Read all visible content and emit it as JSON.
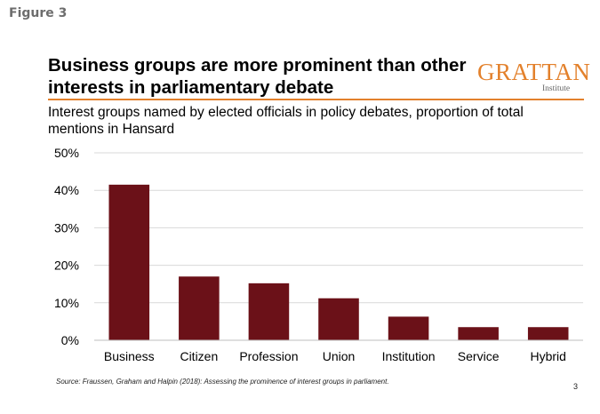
{
  "page": {
    "figure_label": "Figure 3",
    "title": "Business groups are more prominent than other interests in parliamentary debate",
    "subtitle": "Interest groups named by elected officials in policy debates, proportion of total mentions in Hansard",
    "logo_main": "GRATTAN",
    "logo_sub": "Institute",
    "source": "Source: Fraussen, Graham and Halpin (2018): Assessing the prominence of interest groups in parliament.",
    "page_number": "3"
  },
  "colors": {
    "bar": "#6b1118",
    "accent": "#e3812c",
    "grid": "#d9d9d9"
  },
  "chart_data": {
    "type": "bar",
    "categories": [
      "Business",
      "Citizen",
      "Profession",
      "Union",
      "Institution",
      "Service",
      "Hybrid"
    ],
    "values": [
      41.5,
      17,
      15.2,
      11.2,
      6.3,
      3.5,
      3.5
    ],
    "ylim": [
      0,
      50
    ],
    "yticks": [
      0,
      10,
      20,
      30,
      40,
      50
    ],
    "ytick_labels": [
      "0%",
      "10%",
      "20%",
      "30%",
      "40%",
      "50%"
    ],
    "xlabel": "",
    "ylabel": "",
    "grid": true
  }
}
